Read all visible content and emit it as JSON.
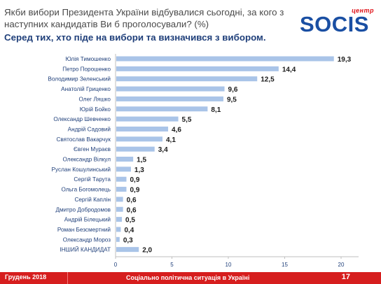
{
  "header": {
    "question": "Якби вибори Президента України відбувалися сьогодні, за кого з наступних кандидатів Ви б проголосували? (%)",
    "subtitle": "Серед тих, хто піде на вибори та визначився з вибором."
  },
  "logo": {
    "top_label": "центр",
    "word": "SOCIS"
  },
  "colors": {
    "bar": "#a9c4e8",
    "subtitle": "#1f3f7a",
    "footer": "#d61e1e",
    "logo": "#1a4fa3"
  },
  "chart_data": {
    "type": "bar",
    "orientation": "horizontal",
    "title": "",
    "xlabel": "",
    "ylabel": "",
    "xlim": [
      0,
      20
    ],
    "xticks": [
      0,
      5,
      10,
      15,
      20
    ],
    "grid": false,
    "categories": [
      "Юлія Тимошенко",
      "Петро Порошенко",
      "Володимир Зеленський",
      "Анатолій Гриценко",
      "Олег Ляшко",
      "Юрій Бойко",
      "Олександр Шевченко",
      "Андрій Садовий",
      "Святослав Вакарчук",
      "Євген Мураєв",
      "Олександр Вілкул",
      "Руслан Кошулинський",
      "Сергій Тарута",
      "Ольга Богомолець",
      "Сергій Каплін",
      "Дмитро Добродомов",
      "Андрій Білецький",
      "Роман Безсмертний",
      "Олександр Мороз",
      "ІНШИЙ КАНДИДАТ"
    ],
    "values": [
      19.3,
      14.4,
      12.5,
      9.6,
      9.5,
      8.1,
      5.5,
      4.6,
      4.1,
      3.4,
      1.5,
      1.3,
      0.9,
      0.9,
      0.6,
      0.6,
      0.5,
      0.4,
      0.3,
      2.0
    ],
    "value_labels": [
      "19,3",
      "14,4",
      "12,5",
      "9,6",
      "9,5",
      "8,1",
      "5,5",
      "4,6",
      "4,1",
      "3,4",
      "1,5",
      "1,3",
      "0,9",
      "0,9",
      "0,6",
      "0,6",
      "0,5",
      "0,4",
      "0,3",
      "2,0"
    ]
  },
  "footer": {
    "date": "Грудень 2018",
    "title": "Соціально політична ситуація в Україні",
    "page": "17"
  }
}
